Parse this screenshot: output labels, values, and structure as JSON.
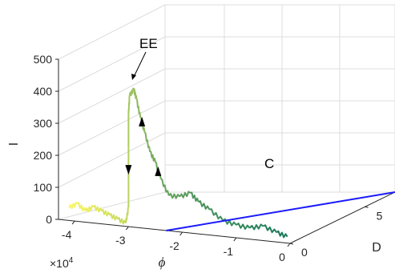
{
  "chart_data": {
    "type": "line",
    "projection": "3d",
    "x_axis": {
      "label": "ϕ",
      "exponent_label": "×10",
      "exponent_power": "4",
      "ticks": [
        -4,
        -3,
        -2,
        -1,
        0
      ],
      "tick_labels": [
        "-4",
        "-3",
        "-2",
        "-1",
        "0"
      ],
      "range": [
        -4.3,
        0
      ]
    },
    "y_axis": {
      "label": "D",
      "ticks": [
        0,
        5
      ],
      "tick_labels": [
        "0",
        "5"
      ],
      "range": [
        0,
        7
      ]
    },
    "z_axis": {
      "label": "I",
      "ticks": [
        0,
        100,
        200,
        300,
        400,
        500
      ],
      "tick_labels": [
        "0",
        "100",
        "200",
        "300",
        "400",
        "500"
      ],
      "range": [
        0,
        500
      ]
    },
    "grid": true,
    "annotations": [
      {
        "text": "EE",
        "phi": -3.0,
        "d": 0,
        "i": 430
      },
      {
        "text": "C",
        "phi": -0.9,
        "d": 3,
        "i": 0
      }
    ],
    "series": [
      {
        "color_start": "#f7f462",
        "color_end": "#1b7a5a",
        "colormap": "summer_reversed",
        "points": [
          {
            "phi": -4.1,
            "d": 0,
            "i": 40
          },
          {
            "phi": -3.95,
            "d": 0,
            "i": 55
          },
          {
            "phi": -3.8,
            "d": 0,
            "i": 35
          },
          {
            "phi": -3.65,
            "d": 0,
            "i": 50
          },
          {
            "phi": -3.5,
            "d": 0,
            "i": 40
          },
          {
            "phi": -3.35,
            "d": 0,
            "i": 30
          },
          {
            "phi": -3.2,
            "d": 0,
            "i": 20
          },
          {
            "phi": -3.05,
            "d": 0,
            "i": 10
          },
          {
            "phi": -3.0,
            "d": 0,
            "i": 60
          },
          {
            "phi": -3.0,
            "d": 0,
            "i": 150
          },
          {
            "phi": -3.0,
            "d": 0,
            "i": 250
          },
          {
            "phi": -3.0,
            "d": 0,
            "i": 350
          },
          {
            "phi": -2.98,
            "d": 0,
            "i": 410
          },
          {
            "phi": -2.9,
            "d": 0,
            "i": 430
          },
          {
            "phi": -2.85,
            "d": 0,
            "i": 400
          },
          {
            "phi": -2.78,
            "d": 0,
            "i": 345
          },
          {
            "phi": -2.7,
            "d": 0,
            "i": 300
          },
          {
            "phi": -2.6,
            "d": 0,
            "i": 240
          },
          {
            "phi": -2.5,
            "d": 0,
            "i": 210
          },
          {
            "phi": -2.4,
            "d": 0,
            "i": 160
          },
          {
            "phi": -2.25,
            "d": 0,
            "i": 110
          },
          {
            "phi": -2.05,
            "d": 0,
            "i": 110
          },
          {
            "phi": -1.85,
            "d": 0,
            "i": 125
          },
          {
            "phi": -1.7,
            "d": 0,
            "i": 100
          },
          {
            "phi": -1.5,
            "d": 0,
            "i": 80
          },
          {
            "phi": -1.25,
            "d": 0,
            "i": 50
          },
          {
            "phi": -1.0,
            "d": 0,
            "i": 40
          },
          {
            "phi": -0.75,
            "d": 0,
            "i": 35
          },
          {
            "phi": -0.5,
            "d": 0,
            "i": 45
          },
          {
            "phi": -0.25,
            "d": 0,
            "i": 30
          },
          {
            "phi": -0.05,
            "d": 0,
            "i": 20
          }
        ]
      },
      {
        "color": "#1a1aff",
        "points": [
          {
            "phi": -2.3,
            "d": 0,
            "i": 0
          },
          {
            "phi": 0.0,
            "d": 7,
            "i": 0
          }
        ]
      }
    ],
    "arrows": [
      {
        "phi": -3.0,
        "i": 180,
        "direction": "down"
      },
      {
        "phi": -2.75,
        "i": 330,
        "direction": "up"
      },
      {
        "phi": -2.45,
        "i": 180,
        "direction": "up"
      }
    ]
  }
}
